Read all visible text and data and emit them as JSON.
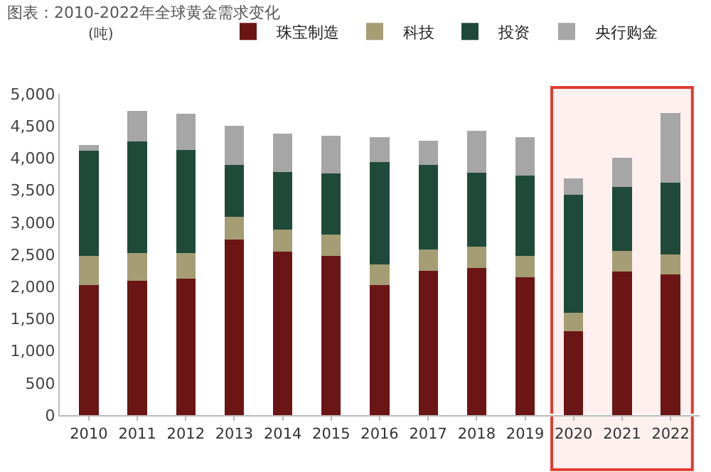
{
  "chart_data": {
    "type": "bar",
    "stacked": true,
    "title": "图表：2010-2022年全球黄金需求变化",
    "ylabel": "(吨)",
    "categories": [
      "2010",
      "2011",
      "2012",
      "2013",
      "2014",
      "2015",
      "2016",
      "2017",
      "2018",
      "2019",
      "2020",
      "2021",
      "2022"
    ],
    "series": [
      {
        "name": "珠宝制造",
        "color": "#6b1515",
        "values": [
          2020,
          2090,
          2120,
          2730,
          2540,
          2480,
          2020,
          2250,
          2290,
          2150,
          1310,
          2230,
          2190
        ]
      },
      {
        "name": "科技",
        "color": "#a59d74",
        "values": [
          460,
          430,
          400,
          360,
          350,
          330,
          320,
          330,
          330,
          330,
          280,
          330,
          310
        ]
      },
      {
        "name": "投资",
        "color": "#1f4a3a",
        "values": [
          1640,
          1740,
          1610,
          800,
          890,
          950,
          1600,
          1310,
          1150,
          1250,
          1840,
          990,
          1120
        ]
      },
      {
        "name": "央行购金",
        "color": "#a6a6a6",
        "values": [
          80,
          470,
          560,
          610,
          600,
          590,
          390,
          380,
          650,
          600,
          250,
          450,
          1080
        ]
      }
    ],
    "ylim": [
      0,
      5000
    ],
    "yticks": [
      {
        "value": 0,
        "label": "0"
      },
      {
        "value": 500,
        "label": "500"
      },
      {
        "value": 1000,
        "label": "1,000"
      },
      {
        "value": 1500,
        "label": "1,500"
      },
      {
        "value": 2000,
        "label": "2,000"
      },
      {
        "value": 2500,
        "label": "2,500"
      },
      {
        "value": 3000,
        "label": "3,000"
      },
      {
        "value": 3500,
        "label": "3,500"
      },
      {
        "value": 4000,
        "label": "4,000"
      },
      {
        "value": 4500,
        "label": "4,500"
      },
      {
        "value": 5000,
        "label": "5,000"
      }
    ],
    "bands": [
      {
        "axis": "x",
        "from": "2020",
        "to": "2022",
        "color": "#e03c31"
      }
    ],
    "legend": "top"
  }
}
